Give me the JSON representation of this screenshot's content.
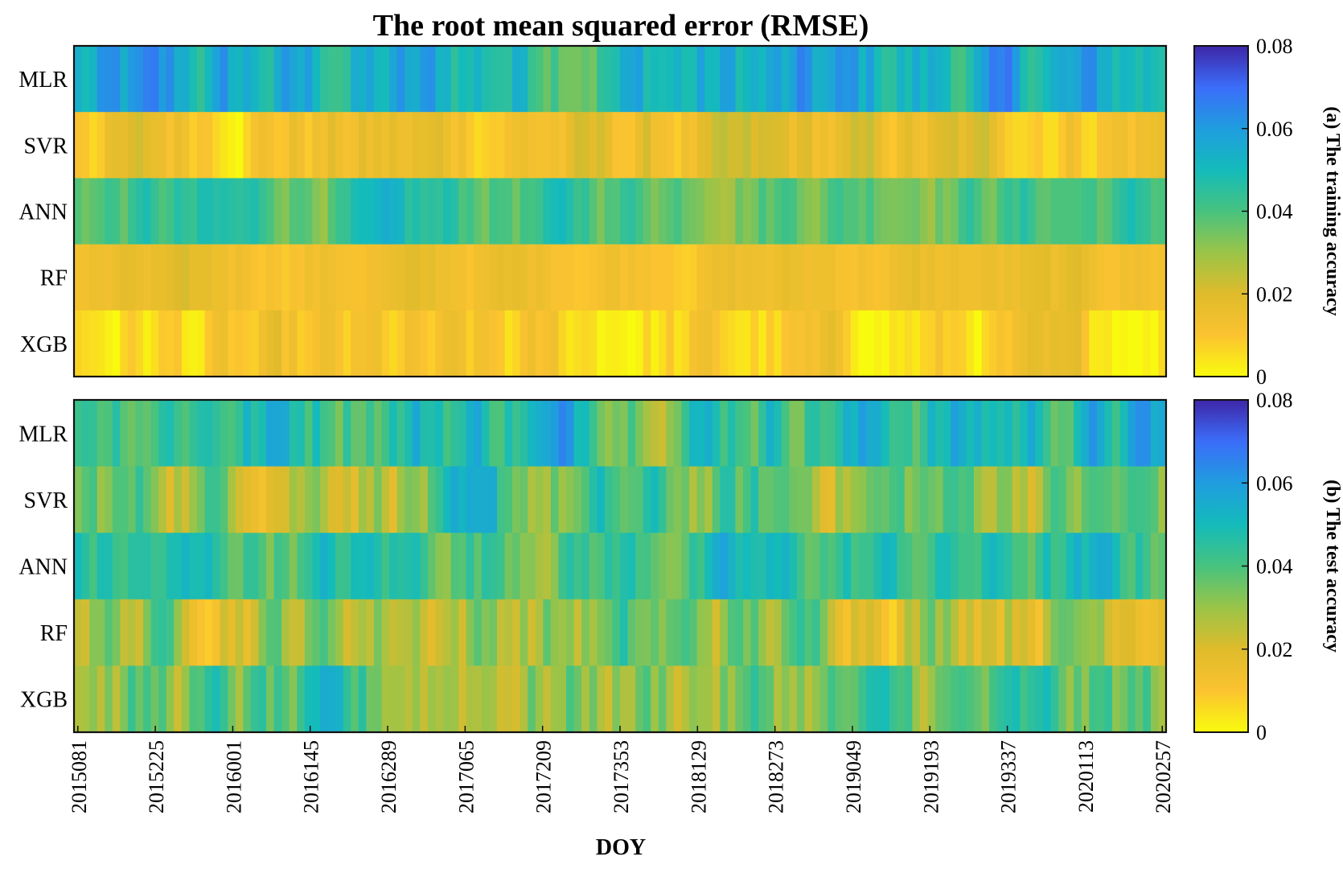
{
  "chart_data": {
    "type": "heatmap",
    "title": "The root mean squared error (RMSE)",
    "xlabel": "DOY",
    "x_tick_labels": [
      "2015081",
      "2015225",
      "2016001",
      "2016145",
      "2016289",
      "2017065",
      "2017209",
      "2017353",
      "2018129",
      "2018273",
      "2019049",
      "2019193",
      "2019337",
      "2020113",
      "2020257"
    ],
    "rows": [
      "MLR",
      "SVR",
      "ANN",
      "RF",
      "XGB"
    ],
    "n_columns": 142,
    "clim": [
      0,
      0.08
    ],
    "colorbar_ticks": [
      "0",
      "0.02",
      "0.04",
      "0.06",
      "0.08"
    ],
    "colormap": "parula (reversed)",
    "colormap_stops": [
      "#f9fb0e",
      "#fbc330",
      "#dfbb2b",
      "#9ac448",
      "#47c37f",
      "#14bbbb",
      "#1f9ddf",
      "#3b6df9",
      "#3e26a8"
    ],
    "panels": [
      {
        "name": "(a) The training accuracy",
        "row_base": [
          0.051,
          0.014,
          0.041,
          0.014,
          0.006
        ],
        "row_variation": [
          0.01,
          0.006,
          0.006,
          0.003,
          0.006
        ]
      },
      {
        "name": "(b) The test accuracy",
        "row_base": [
          0.05,
          0.034,
          0.043,
          0.031,
          0.033
        ],
        "row_variation": [
          0.01,
          0.01,
          0.008,
          0.01,
          0.01
        ]
      }
    ]
  }
}
